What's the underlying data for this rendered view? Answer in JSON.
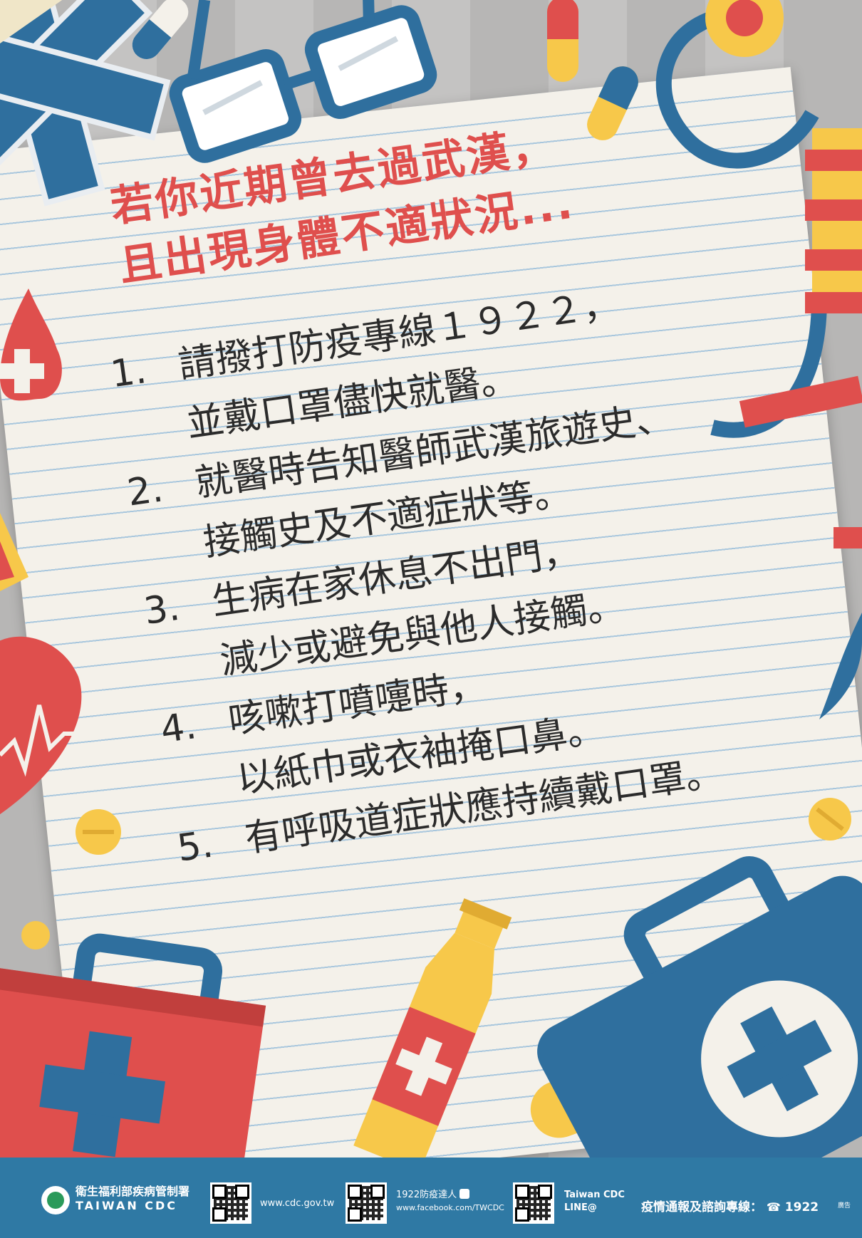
{
  "headline": {
    "line1": "若你近期曾去過武漢，",
    "line2": "且出現身體不適狀況..."
  },
  "items": [
    {
      "num": "1.",
      "line1": "請撥打防疫專線１９２２，",
      "line2": "並戴口罩儘快就醫。"
    },
    {
      "num": "2.",
      "line1": "就醫時告知醫師武漢旅遊史、",
      "line2": "接觸史及不適症狀等。"
    },
    {
      "num": "3.",
      "line1": "生病在家休息不出門，",
      "line2": "減少或避免與他人接觸。"
    },
    {
      "num": "4.",
      "line1": "咳嗽打噴嚏時，",
      "line2": "以紙巾或衣袖掩口鼻。"
    },
    {
      "num": "5.",
      "line1": "有呼吸道症狀應持續戴口罩。",
      "line2": ""
    }
  ],
  "footer": {
    "agency_zh": "衛生福利部疾病管制署",
    "agency_en": "TAIWAN CDC",
    "website": "www.cdc.gov.tw",
    "facebook_name": "1922防疫達人",
    "facebook_url": "www.facebook.com/TWCDC",
    "line_name": "Taiwan CDC",
    "line_id": "LINE@",
    "hotline_label": "疫情通報及諮詢專線：",
    "hotline_number": "1922",
    "ad_mark": "廣告"
  },
  "colors": {
    "headline_red": "#df4f4d",
    "footer_blue": "#2f79a4",
    "paper": "#f4f1ea",
    "line_blue": "#a9c7dd"
  },
  "icons": [
    "medical-star-icon",
    "glasses-icon",
    "pill-icon",
    "stethoscope-icon",
    "blood-drop-icon",
    "heart-icon",
    "medical-kit-icon",
    "bottle-icon",
    "thumbs-up-icon",
    "phone-icon"
  ]
}
